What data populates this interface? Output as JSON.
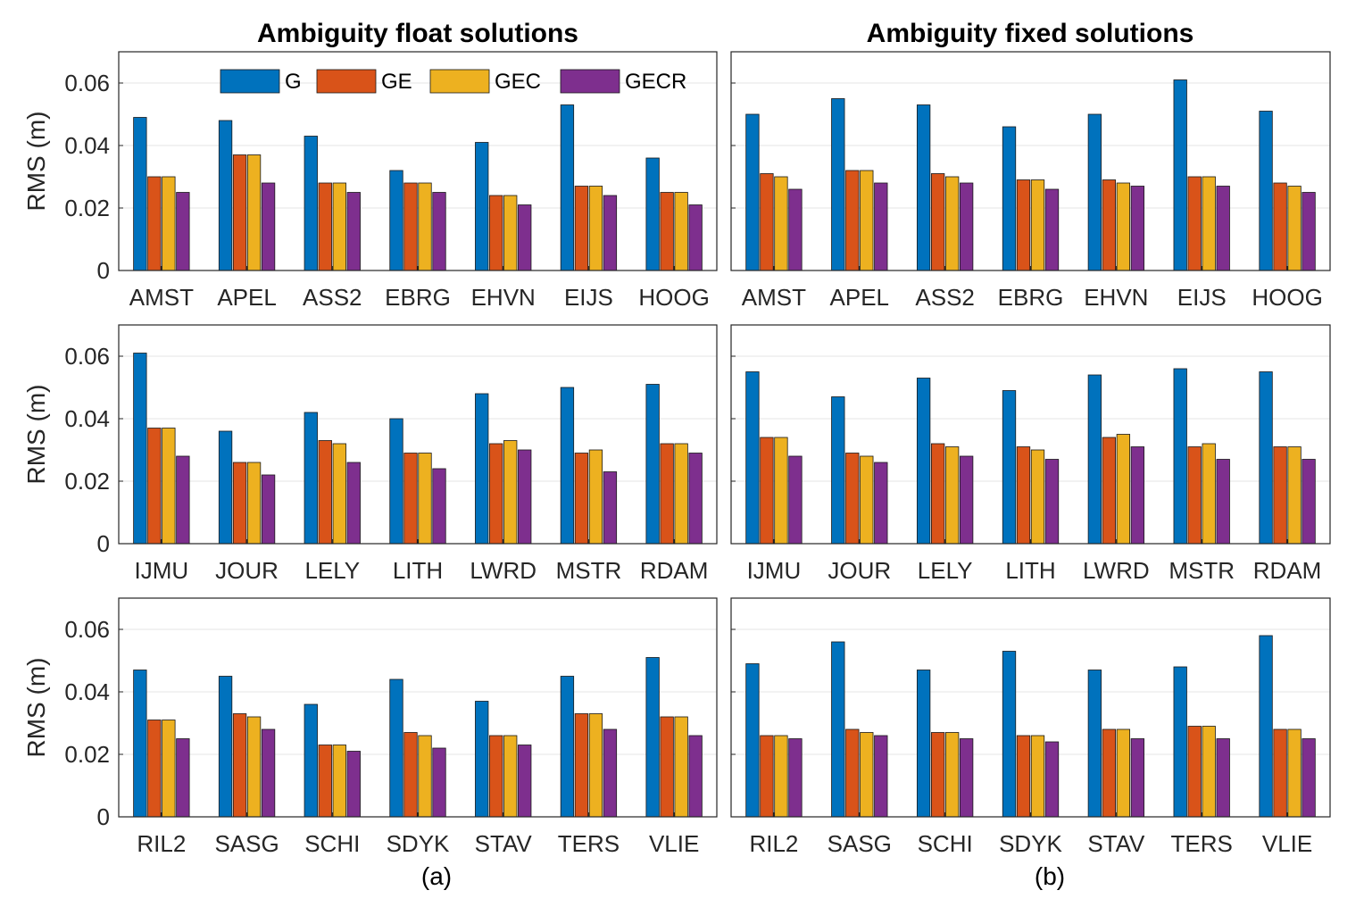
{
  "figure": {
    "column_titles": [
      "Ambiguity float solutions",
      "Ambiguity fixed solutions"
    ],
    "subfigure_labels": [
      "(a)",
      "(b)"
    ],
    "y_axis_label": "RMS (m)",
    "y_ticks": [
      "0",
      "0.02",
      "0.04",
      "0.06"
    ],
    "legend": {
      "entries": [
        "G",
        "GE",
        "GEC",
        "GECR"
      ],
      "colors": [
        "#0072BD",
        "#D95319",
        "#EDB120",
        "#7E2F8E"
      ],
      "placement": "top-right of upper-left panel"
    }
  },
  "chart_data": [
    {
      "type": "bar",
      "panel": "float-row1",
      "title": "Ambiguity float solutions",
      "ylabel": "RMS (m)",
      "ylim": [
        0,
        0.07
      ],
      "categories": [
        "AMST",
        "APEL",
        "ASS2",
        "EBRG",
        "EHVN",
        "EIJS",
        "HOOG"
      ],
      "series": [
        {
          "name": "G",
          "values": [
            0.049,
            0.048,
            0.043,
            0.032,
            0.041,
            0.053,
            0.036
          ]
        },
        {
          "name": "GE",
          "values": [
            0.03,
            0.037,
            0.028,
            0.028,
            0.024,
            0.027,
            0.025
          ]
        },
        {
          "name": "GEC",
          "values": [
            0.03,
            0.037,
            0.028,
            0.028,
            0.024,
            0.027,
            0.025
          ]
        },
        {
          "name": "GECR",
          "values": [
            0.025,
            0.028,
            0.025,
            0.025,
            0.021,
            0.024,
            0.021
          ]
        }
      ]
    },
    {
      "type": "bar",
      "panel": "fixed-row1",
      "title": "Ambiguity fixed solutions",
      "ylabel": "",
      "ylim": [
        0,
        0.07
      ],
      "categories": [
        "AMST",
        "APEL",
        "ASS2",
        "EBRG",
        "EHVN",
        "EIJS",
        "HOOG"
      ],
      "series": [
        {
          "name": "G",
          "values": [
            0.05,
            0.055,
            0.053,
            0.046,
            0.05,
            0.061,
            0.051
          ]
        },
        {
          "name": "GE",
          "values": [
            0.031,
            0.032,
            0.031,
            0.029,
            0.029,
            0.03,
            0.028
          ]
        },
        {
          "name": "GEC",
          "values": [
            0.03,
            0.032,
            0.03,
            0.029,
            0.028,
            0.03,
            0.027
          ]
        },
        {
          "name": "GECR",
          "values": [
            0.026,
            0.028,
            0.028,
            0.026,
            0.027,
            0.027,
            0.025
          ]
        }
      ]
    },
    {
      "type": "bar",
      "panel": "float-row2",
      "ylabel": "RMS (m)",
      "ylim": [
        0,
        0.07
      ],
      "categories": [
        "IJMU",
        "JOUR",
        "LELY",
        "LITH",
        "LWRD",
        "MSTR",
        "RDAM"
      ],
      "series": [
        {
          "name": "G",
          "values": [
            0.061,
            0.036,
            0.042,
            0.04,
            0.048,
            0.05,
            0.051
          ]
        },
        {
          "name": "GE",
          "values": [
            0.037,
            0.026,
            0.033,
            0.029,
            0.032,
            0.029,
            0.032
          ]
        },
        {
          "name": "GEC",
          "values": [
            0.037,
            0.026,
            0.032,
            0.029,
            0.033,
            0.03,
            0.032
          ]
        },
        {
          "name": "GECR",
          "values": [
            0.028,
            0.022,
            0.026,
            0.024,
            0.03,
            0.023,
            0.029
          ]
        }
      ]
    },
    {
      "type": "bar",
      "panel": "fixed-row2",
      "ylabel": "",
      "ylim": [
        0,
        0.07
      ],
      "categories": [
        "IJMU",
        "JOUR",
        "LELY",
        "LITH",
        "LWRD",
        "MSTR",
        "RDAM"
      ],
      "series": [
        {
          "name": "G",
          "values": [
            0.055,
            0.047,
            0.053,
            0.049,
            0.054,
            0.056,
            0.055
          ]
        },
        {
          "name": "GE",
          "values": [
            0.034,
            0.029,
            0.032,
            0.031,
            0.034,
            0.031,
            0.031
          ]
        },
        {
          "name": "GEC",
          "values": [
            0.034,
            0.028,
            0.031,
            0.03,
            0.035,
            0.032,
            0.031
          ]
        },
        {
          "name": "GECR",
          "values": [
            0.028,
            0.026,
            0.028,
            0.027,
            0.031,
            0.027,
            0.027
          ]
        }
      ]
    },
    {
      "type": "bar",
      "panel": "float-row3",
      "ylabel": "RMS (m)",
      "ylim": [
        0,
        0.07
      ],
      "categories": [
        "RIL2",
        "SASG",
        "SCHI",
        "SDYK",
        "STAV",
        "TERS",
        "VLIE"
      ],
      "series": [
        {
          "name": "G",
          "values": [
            0.047,
            0.045,
            0.036,
            0.044,
            0.037,
            0.045,
            0.051
          ]
        },
        {
          "name": "GE",
          "values": [
            0.031,
            0.033,
            0.023,
            0.027,
            0.026,
            0.033,
            0.032
          ]
        },
        {
          "name": "GEC",
          "values": [
            0.031,
            0.032,
            0.023,
            0.026,
            0.026,
            0.033,
            0.032
          ]
        },
        {
          "name": "GECR",
          "values": [
            0.025,
            0.028,
            0.021,
            0.022,
            0.023,
            0.028,
            0.026
          ]
        }
      ]
    },
    {
      "type": "bar",
      "panel": "fixed-row3",
      "ylabel": "",
      "ylim": [
        0,
        0.07
      ],
      "categories": [
        "RIL2",
        "SASG",
        "SCHI",
        "SDYK",
        "STAV",
        "TERS",
        "VLIE"
      ],
      "series": [
        {
          "name": "G",
          "values": [
            0.049,
            0.056,
            0.047,
            0.053,
            0.047,
            0.048,
            0.058
          ]
        },
        {
          "name": "GE",
          "values": [
            0.026,
            0.028,
            0.027,
            0.026,
            0.028,
            0.029,
            0.028
          ]
        },
        {
          "name": "GEC",
          "values": [
            0.026,
            0.027,
            0.027,
            0.026,
            0.028,
            0.029,
            0.028
          ]
        },
        {
          "name": "GECR",
          "values": [
            0.025,
            0.026,
            0.025,
            0.024,
            0.025,
            0.025,
            0.025
          ]
        }
      ]
    }
  ]
}
